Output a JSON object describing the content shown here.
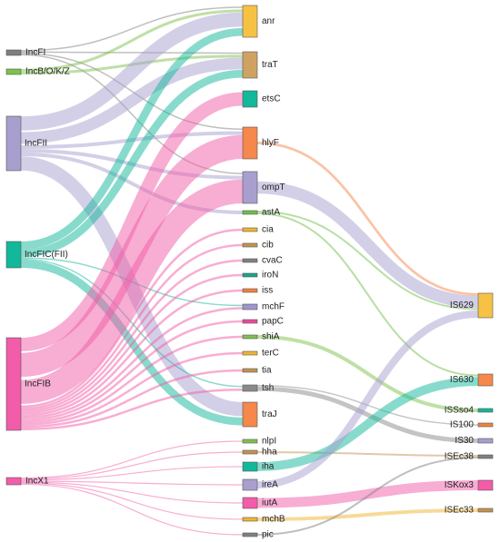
{
  "diagram": {
    "type": "sankey",
    "columns": [
      {
        "name": "plasmids",
        "nodes": [
          {
            "id": "IncFI",
            "label": "IncFI",
            "color": "#7f7f7f"
          },
          {
            "id": "IncBOKZ",
            "label": "IncB/O/K/Z",
            "color": "#7dc24b"
          },
          {
            "id": "IncFII",
            "label": "IncFII",
            "color": "#a89fcf"
          },
          {
            "id": "IncFICFII",
            "label": "IncFIC(FII)",
            "color": "#12b89a"
          },
          {
            "id": "IncFIB",
            "label": "IncFIB",
            "color": "#f25ca8"
          },
          {
            "id": "IncX1",
            "label": "IncX1",
            "color": "#f25ca8"
          }
        ]
      },
      {
        "name": "virulence_genes",
        "nodes": [
          {
            "id": "anr",
            "label": "anr",
            "color": "#f7c244"
          },
          {
            "id": "traT",
            "label": "traT",
            "color": "#cfa261"
          },
          {
            "id": "etsC",
            "label": "etsC",
            "color": "#12b89a"
          },
          {
            "id": "hlyF",
            "label": "hlyF",
            "color": "#f5884a"
          },
          {
            "id": "ompT",
            "label": "ompT",
            "color": "#a89fcf"
          },
          {
            "id": "astA",
            "label": "astA",
            "color": "#6fbf4a"
          },
          {
            "id": "cia",
            "label": "cia",
            "color": "#f0b530"
          },
          {
            "id": "cib",
            "label": "cib",
            "color": "#c29450"
          },
          {
            "id": "cvaC",
            "label": "cvaC",
            "color": "#808080"
          },
          {
            "id": "iroN",
            "label": "iroN",
            "color": "#14a58a"
          },
          {
            "id": "iss",
            "label": "iss",
            "color": "#f0823d"
          },
          {
            "id": "mchF",
            "label": "mchF",
            "color": "#9f95cc"
          },
          {
            "id": "papC",
            "label": "papC",
            "color": "#ee4a9a"
          },
          {
            "id": "shiA",
            "label": "shiA",
            "color": "#7dc24b"
          },
          {
            "id": "terC",
            "label": "terC",
            "color": "#f0b530"
          },
          {
            "id": "tia",
            "label": "tia",
            "color": "#c29450"
          },
          {
            "id": "tsh",
            "label": "tsh",
            "color": "#8a8a8a"
          },
          {
            "id": "traJ",
            "label": "traJ",
            "color": "#f5884a"
          },
          {
            "id": "nlpI",
            "label": "nlpI",
            "color": "#7dc24b"
          },
          {
            "id": "hha",
            "label": "hha",
            "color": "#c29450"
          },
          {
            "id": "iha",
            "label": "iha",
            "color": "#12b89a"
          },
          {
            "id": "ireA",
            "label": "ireA",
            "color": "#a89fcf"
          },
          {
            "id": "iutA",
            "label": "iutA",
            "color": "#f25ca8"
          },
          {
            "id": "mchB",
            "label": "mchB",
            "color": "#f0b530"
          },
          {
            "id": "pic",
            "label": "pic",
            "color": "#808080"
          }
        ]
      },
      {
        "name": "insertion_sequences",
        "nodes": [
          {
            "id": "IS629",
            "label": "IS629",
            "color": "#f7c244"
          },
          {
            "id": "IS630",
            "label": "IS630",
            "color": "#f5884a"
          },
          {
            "id": "ISSso4",
            "label": "ISSso4",
            "color": "#12b89a"
          },
          {
            "id": "IS100",
            "label": "IS100",
            "color": "#f0823d"
          },
          {
            "id": "IS30",
            "label": "IS30",
            "color": "#a89fcf"
          },
          {
            "id": "ISEc38",
            "label": "ISEc38",
            "color": "#808080"
          },
          {
            "id": "ISKox3",
            "label": "ISKox3",
            "color": "#f25ca8"
          },
          {
            "id": "ISEc33",
            "label": "ISEc33",
            "color": "#c29450"
          }
        ]
      }
    ],
    "links": [
      {
        "source": "IncFI",
        "target": "anr",
        "value": 1
      },
      {
        "source": "IncFI",
        "target": "traT",
        "value": 1
      },
      {
        "source": "IncFI",
        "target": "hlyF",
        "value": 1
      },
      {
        "source": "IncFI",
        "target": "ompT",
        "value": 1
      },
      {
        "source": "IncBOKZ",
        "target": "anr",
        "value": 1
      },
      {
        "source": "IncBOKZ",
        "target": "traT",
        "value": 1
      },
      {
        "source": "IncFII",
        "target": "anr",
        "value": 4
      },
      {
        "source": "IncFII",
        "target": "traT",
        "value": 4
      },
      {
        "source": "IncFII",
        "target": "hlyF",
        "value": 1
      },
      {
        "source": "IncFII",
        "target": "ompT",
        "value": 1
      },
      {
        "source": "IncFII",
        "target": "astA",
        "value": 1
      },
      {
        "source": "IncFII",
        "target": "traJ",
        "value": 4
      },
      {
        "source": "IncFICFII",
        "target": "anr",
        "value": 3
      },
      {
        "source": "IncFICFII",
        "target": "traT",
        "value": 3
      },
      {
        "source": "IncFICFII",
        "target": "mchF",
        "value": 0.5
      },
      {
        "source": "IncFICFII",
        "target": "tsh",
        "value": 0.5
      },
      {
        "source": "IncFICFII",
        "target": "traJ",
        "value": 3
      },
      {
        "source": "IncFIB",
        "target": "etsC",
        "value": 3
      },
      {
        "source": "IncFIB",
        "target": "hlyF",
        "value": 6
      },
      {
        "source": "IncFIB",
        "target": "ompT",
        "value": 6
      },
      {
        "source": "IncFIB",
        "target": "cia",
        "value": 0.5
      },
      {
        "source": "IncFIB",
        "target": "cib",
        "value": 0.5
      },
      {
        "source": "IncFIB",
        "target": "cvaC",
        "value": 0.5
      },
      {
        "source": "IncFIB",
        "target": "iroN",
        "value": 0.5
      },
      {
        "source": "IncFIB",
        "target": "iss",
        "value": 0.5
      },
      {
        "source": "IncFIB",
        "target": "mchF",
        "value": 0.5
      },
      {
        "source": "IncFIB",
        "target": "papC",
        "value": 0.5
      },
      {
        "source": "IncFIB",
        "target": "shiA",
        "value": 0.5
      },
      {
        "source": "IncFIB",
        "target": "terC",
        "value": 0.5
      },
      {
        "source": "IncFIB",
        "target": "tia",
        "value": 0.5
      },
      {
        "source": "IncFIB",
        "target": "tsh",
        "value": 0.5
      },
      {
        "source": "IncX1",
        "target": "nlpI",
        "value": 0.5
      },
      {
        "source": "IncX1",
        "target": "hha",
        "value": 0.5
      },
      {
        "source": "IncX1",
        "target": "iha",
        "value": 0.5
      },
      {
        "source": "IncX1",
        "target": "ireA",
        "value": 0.5
      },
      {
        "source": "IncX1",
        "target": "iutA",
        "value": 0.5
      },
      {
        "source": "IncX1",
        "target": "mchB",
        "value": 0.5
      },
      {
        "source": "IncX1",
        "target": "pic",
        "value": 0.5
      },
      {
        "source": "hlyF",
        "target": "IS629",
        "value": 1
      },
      {
        "source": "ompT",
        "target": "IS629",
        "value": 5
      },
      {
        "source": "astA",
        "target": "IS629",
        "value": 1
      },
      {
        "source": "astA",
        "target": "IS630",
        "value": 1
      },
      {
        "source": "shiA",
        "target": "ISSso4",
        "value": 0.5
      },
      {
        "source": "tsh",
        "target": "IS100",
        "value": 0.5
      },
      {
        "source": "tsh",
        "target": "IS30",
        "value": 2
      },
      {
        "source": "hha",
        "target": "ISEc38",
        "value": 0.5
      },
      {
        "source": "iha",
        "target": "IS630",
        "value": 3
      },
      {
        "source": "ireA",
        "target": "IS629",
        "value": 3
      },
      {
        "source": "iutA",
        "target": "ISKox3",
        "value": 3
      },
      {
        "source": "mchB",
        "target": "ISEc33",
        "value": 1
      },
      {
        "source": "pic",
        "target": "ISEc38",
        "value": 0.5
      }
    ]
  }
}
